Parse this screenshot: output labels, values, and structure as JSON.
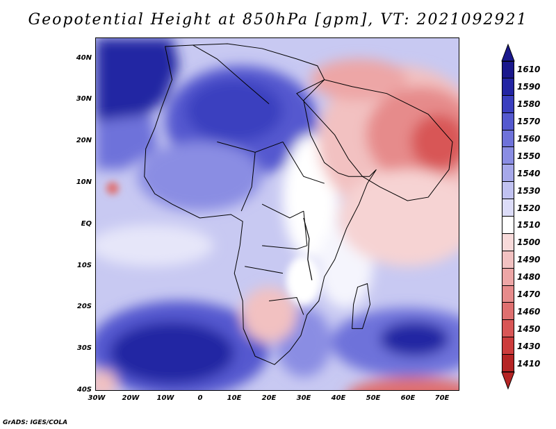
{
  "title": "Geopotential Height at 850hPa [gpm], VT: 2021092921",
  "credit": "GrADS: IGES/COLA",
  "axes": {
    "lat_labels": [
      "40N",
      "30N",
      "20N",
      "10N",
      "EQ",
      "10S",
      "20S",
      "30S",
      "40S"
    ],
    "lon_labels": [
      "30W",
      "20W",
      "10W",
      "0",
      "10E",
      "20E",
      "30E",
      "40E",
      "50E",
      "60E",
      "70E"
    ]
  },
  "colorbar": {
    "levels": [
      {
        "label": "1610",
        "color": "#1a188c"
      },
      {
        "label": "1590",
        "color": "#2325a3"
      },
      {
        "label": "1580",
        "color": "#3a3fbf"
      },
      {
        "label": "1570",
        "color": "#5459cf"
      },
      {
        "label": "1560",
        "color": "#6e72da"
      },
      {
        "label": "1550",
        "color": "#8a8de3"
      },
      {
        "label": "1540",
        "color": "#a6a8ea"
      },
      {
        "label": "1530",
        "color": "#c1c2f1"
      },
      {
        "label": "1520",
        "color": "#dcdcf8"
      },
      {
        "label": "1510",
        "color": "#ffffff"
      },
      {
        "label": "1500",
        "color": "#f8dada"
      },
      {
        "label": "1490",
        "color": "#f2c1c1"
      },
      {
        "label": "1480",
        "color": "#eda6a6"
      },
      {
        "label": "1470",
        "color": "#e68b8b"
      },
      {
        "label": "1460",
        "color": "#df7070"
      },
      {
        "label": "1450",
        "color": "#d85656"
      },
      {
        "label": "1430",
        "color": "#cc3c3c"
      },
      {
        "label": "1410",
        "color": "#b52424"
      }
    ],
    "top_cap_color": "#1a188c",
    "bottom_cap_color": "#b52424"
  },
  "colors": {
    "deep_high": "#2325a3",
    "high": "#5459cf",
    "mid_high": "#a6a8ea",
    "neutral": "#ffffff",
    "low": "#f2c1c1",
    "mid_low": "#e68b8b",
    "deep_low": "#d85656"
  }
}
